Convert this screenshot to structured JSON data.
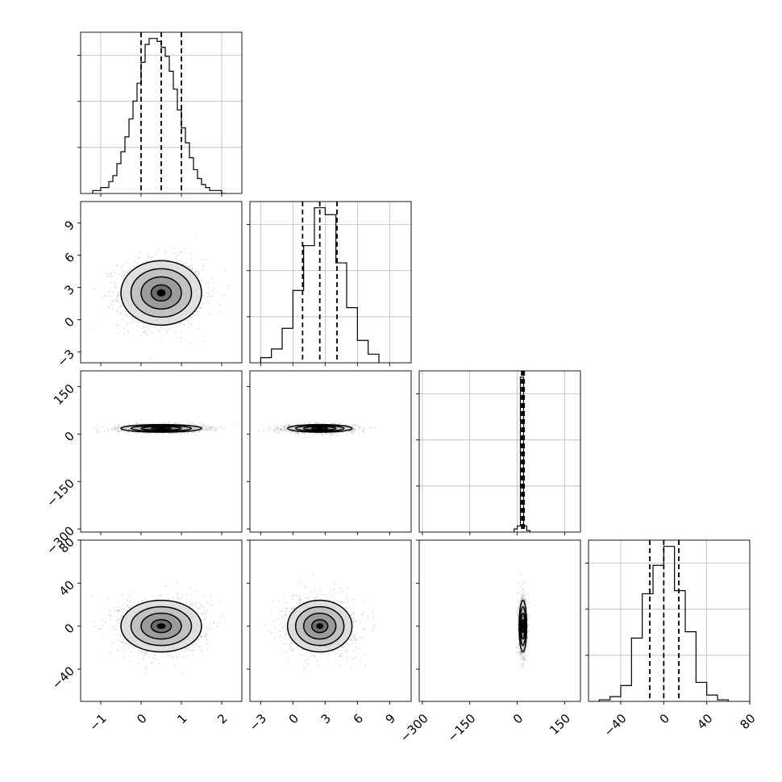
{
  "chart_data": {
    "type": "corner",
    "parameters": [
      {
        "range": [
          -1.5,
          2.5
        ],
        "ticks": [
          -1,
          0,
          1,
          2
        ],
        "tick_labels": [
          "−1",
          "0",
          "1",
          "2"
        ],
        "mean": 0.5,
        "sd": 0.5,
        "quantiles": [
          0.0,
          0.5,
          1.0
        ]
      },
      {
        "range": [
          -4,
          11
        ],
        "ticks": [
          -3,
          0,
          3,
          6,
          9
        ],
        "tick_labels": [
          "−3",
          "0",
          "3",
          "6",
          "9"
        ],
        "mean": 2.5,
        "sd": 1.5,
        "quantiles": [
          0.9,
          2.5,
          4.1
        ]
      },
      {
        "range": [
          -310,
          200
        ],
        "ticks": [
          -300,
          -150,
          0,
          150
        ],
        "tick_labels": [
          "−300",
          "−150",
          "0",
          "150"
        ],
        "mean": 18,
        "sd": 6,
        "quantiles": [
          14,
          18,
          22
        ]
      },
      {
        "range": [
          -70,
          80
        ],
        "ticks": [
          -40,
          0,
          40,
          80
        ],
        "tick_labels": [
          "−40",
          "0",
          "40",
          "80"
        ],
        "mean": 0,
        "sd": 12,
        "quantiles": [
          -13,
          0,
          14
        ]
      }
    ],
    "histograms": [
      {
        "bin_edges": [
          -1.2,
          -1.1,
          -1.0,
          -0.9,
          -0.8,
          -0.7,
          -0.6,
          -0.5,
          -0.4,
          -0.3,
          -0.2,
          -0.1,
          0.0,
          0.1,
          0.2,
          0.3,
          0.4,
          0.5,
          0.6,
          0.7,
          0.8,
          0.9,
          1.0,
          1.1,
          1.2,
          1.3,
          1.4,
          1.5,
          1.6,
          1.7,
          1.8,
          1.9,
          2.0,
          2.1
        ],
        "counts": [
          1,
          1,
          2,
          2,
          4,
          6,
          10,
          14,
          19,
          25,
          31,
          37,
          44,
          50,
          52,
          52,
          51,
          49,
          46,
          41,
          35,
          28,
          22,
          17,
          12,
          8,
          5,
          3,
          2,
          1,
          1,
          1,
          0
        ]
      },
      {
        "bin_edges": [
          -3.0,
          -2.0,
          -1.0,
          0.0,
          1.0,
          2.0,
          3.0,
          4.0,
          5.0,
          6.0,
          7.0,
          8.0
        ],
        "counts": [
          3,
          8,
          20,
          42,
          68,
          90,
          86,
          58,
          32,
          13,
          5
        ]
      },
      {
        "bin_edges": [
          -10,
          0,
          10,
          20,
          30,
          40
        ],
        "counts": [
          2,
          4,
          100,
          4,
          1
        ]
      },
      {
        "bin_edges": [
          -60,
          -50,
          -40,
          -30,
          -20,
          -10,
          0,
          10,
          20,
          30,
          40,
          50,
          60
        ],
        "counts": [
          1,
          3,
          10,
          40,
          68,
          86,
          98,
          70,
          44,
          12,
          4,
          1
        ]
      }
    ],
    "contour_levels_sigma": [
      0.5,
      1.0,
      1.5,
      2.0
    ],
    "grid": true,
    "sample_points_per_panel": 1500
  }
}
